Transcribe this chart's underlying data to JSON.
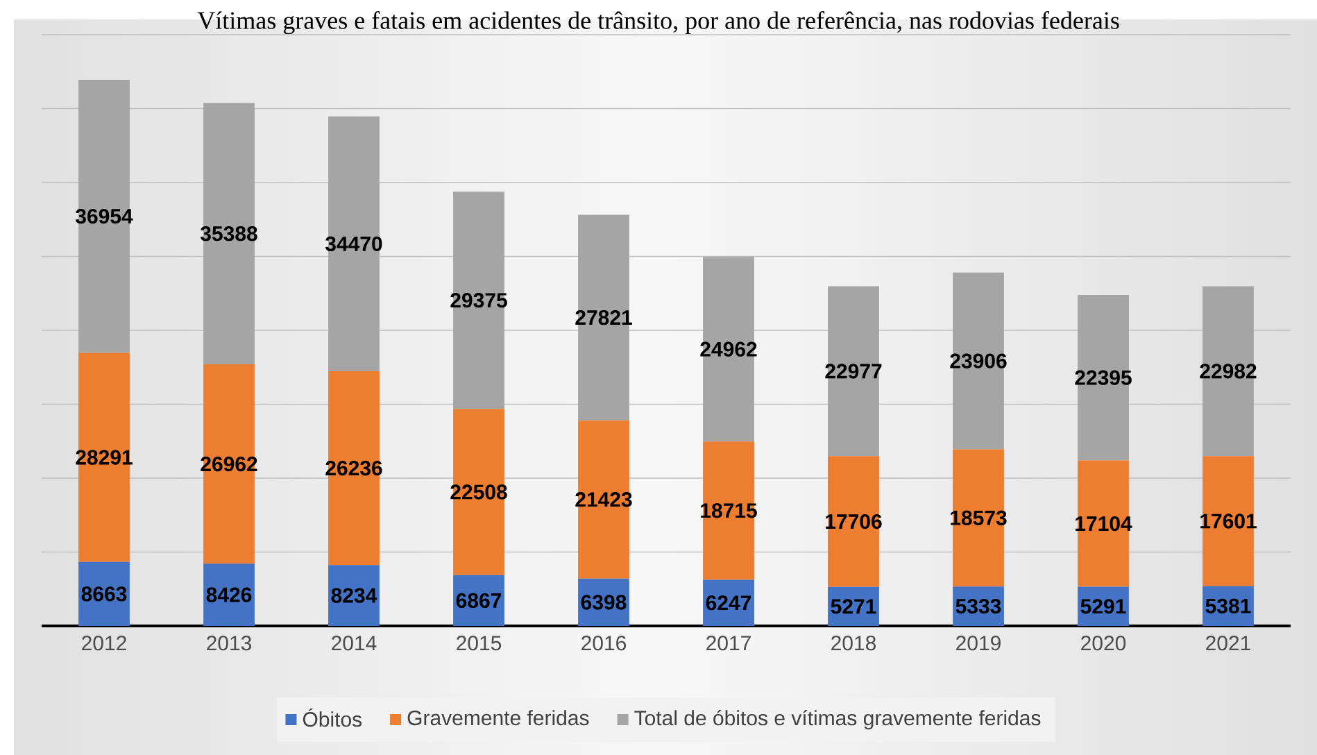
{
  "chart_data": {
    "type": "bar",
    "stacked": true,
    "title": "Vítimas graves e fatais em acidentes de trânsito, por ano de referência, nas rodovias federais",
    "categories": [
      "2012",
      "2013",
      "2014",
      "2015",
      "2016",
      "2017",
      "2018",
      "2019",
      "2020",
      "2021"
    ],
    "series": [
      {
        "name": "Óbitos",
        "color": "#4472c4",
        "values": [
          8663,
          8426,
          8234,
          6867,
          6398,
          6247,
          5271,
          5333,
          5291,
          5381
        ]
      },
      {
        "name": "Gravemente feridas",
        "color": "#ed7d31",
        "values": [
          28291,
          26962,
          26236,
          22508,
          21423,
          18715,
          17706,
          18573,
          17104,
          17601
        ]
      },
      {
        "name": "Total de óbitos e vítimas gravemente feridas",
        "color": "#a5a5a5",
        "values": [
          36954,
          35388,
          34470,
          29375,
          27821,
          24962,
          22977,
          23906,
          22395,
          22982
        ]
      }
    ],
    "ylim": [
      0,
      80000
    ],
    "yticks": [
      {
        "value": 0,
        "label": null
      },
      {
        "value": 10000,
        "label": null
      },
      {
        "value": 20000,
        "label": null
      },
      {
        "value": 30000,
        "label": null
      },
      {
        "value": 40000,
        "label": null
      },
      {
        "value": 50000,
        "label": null
      },
      {
        "value": 60000,
        "label": null
      },
      {
        "value": 70000,
        "label": null
      },
      {
        "value": 80000,
        "label": null
      }
    ],
    "grid": "y",
    "tick_labels": "x",
    "data_labels": true,
    "legend": "bottom"
  }
}
